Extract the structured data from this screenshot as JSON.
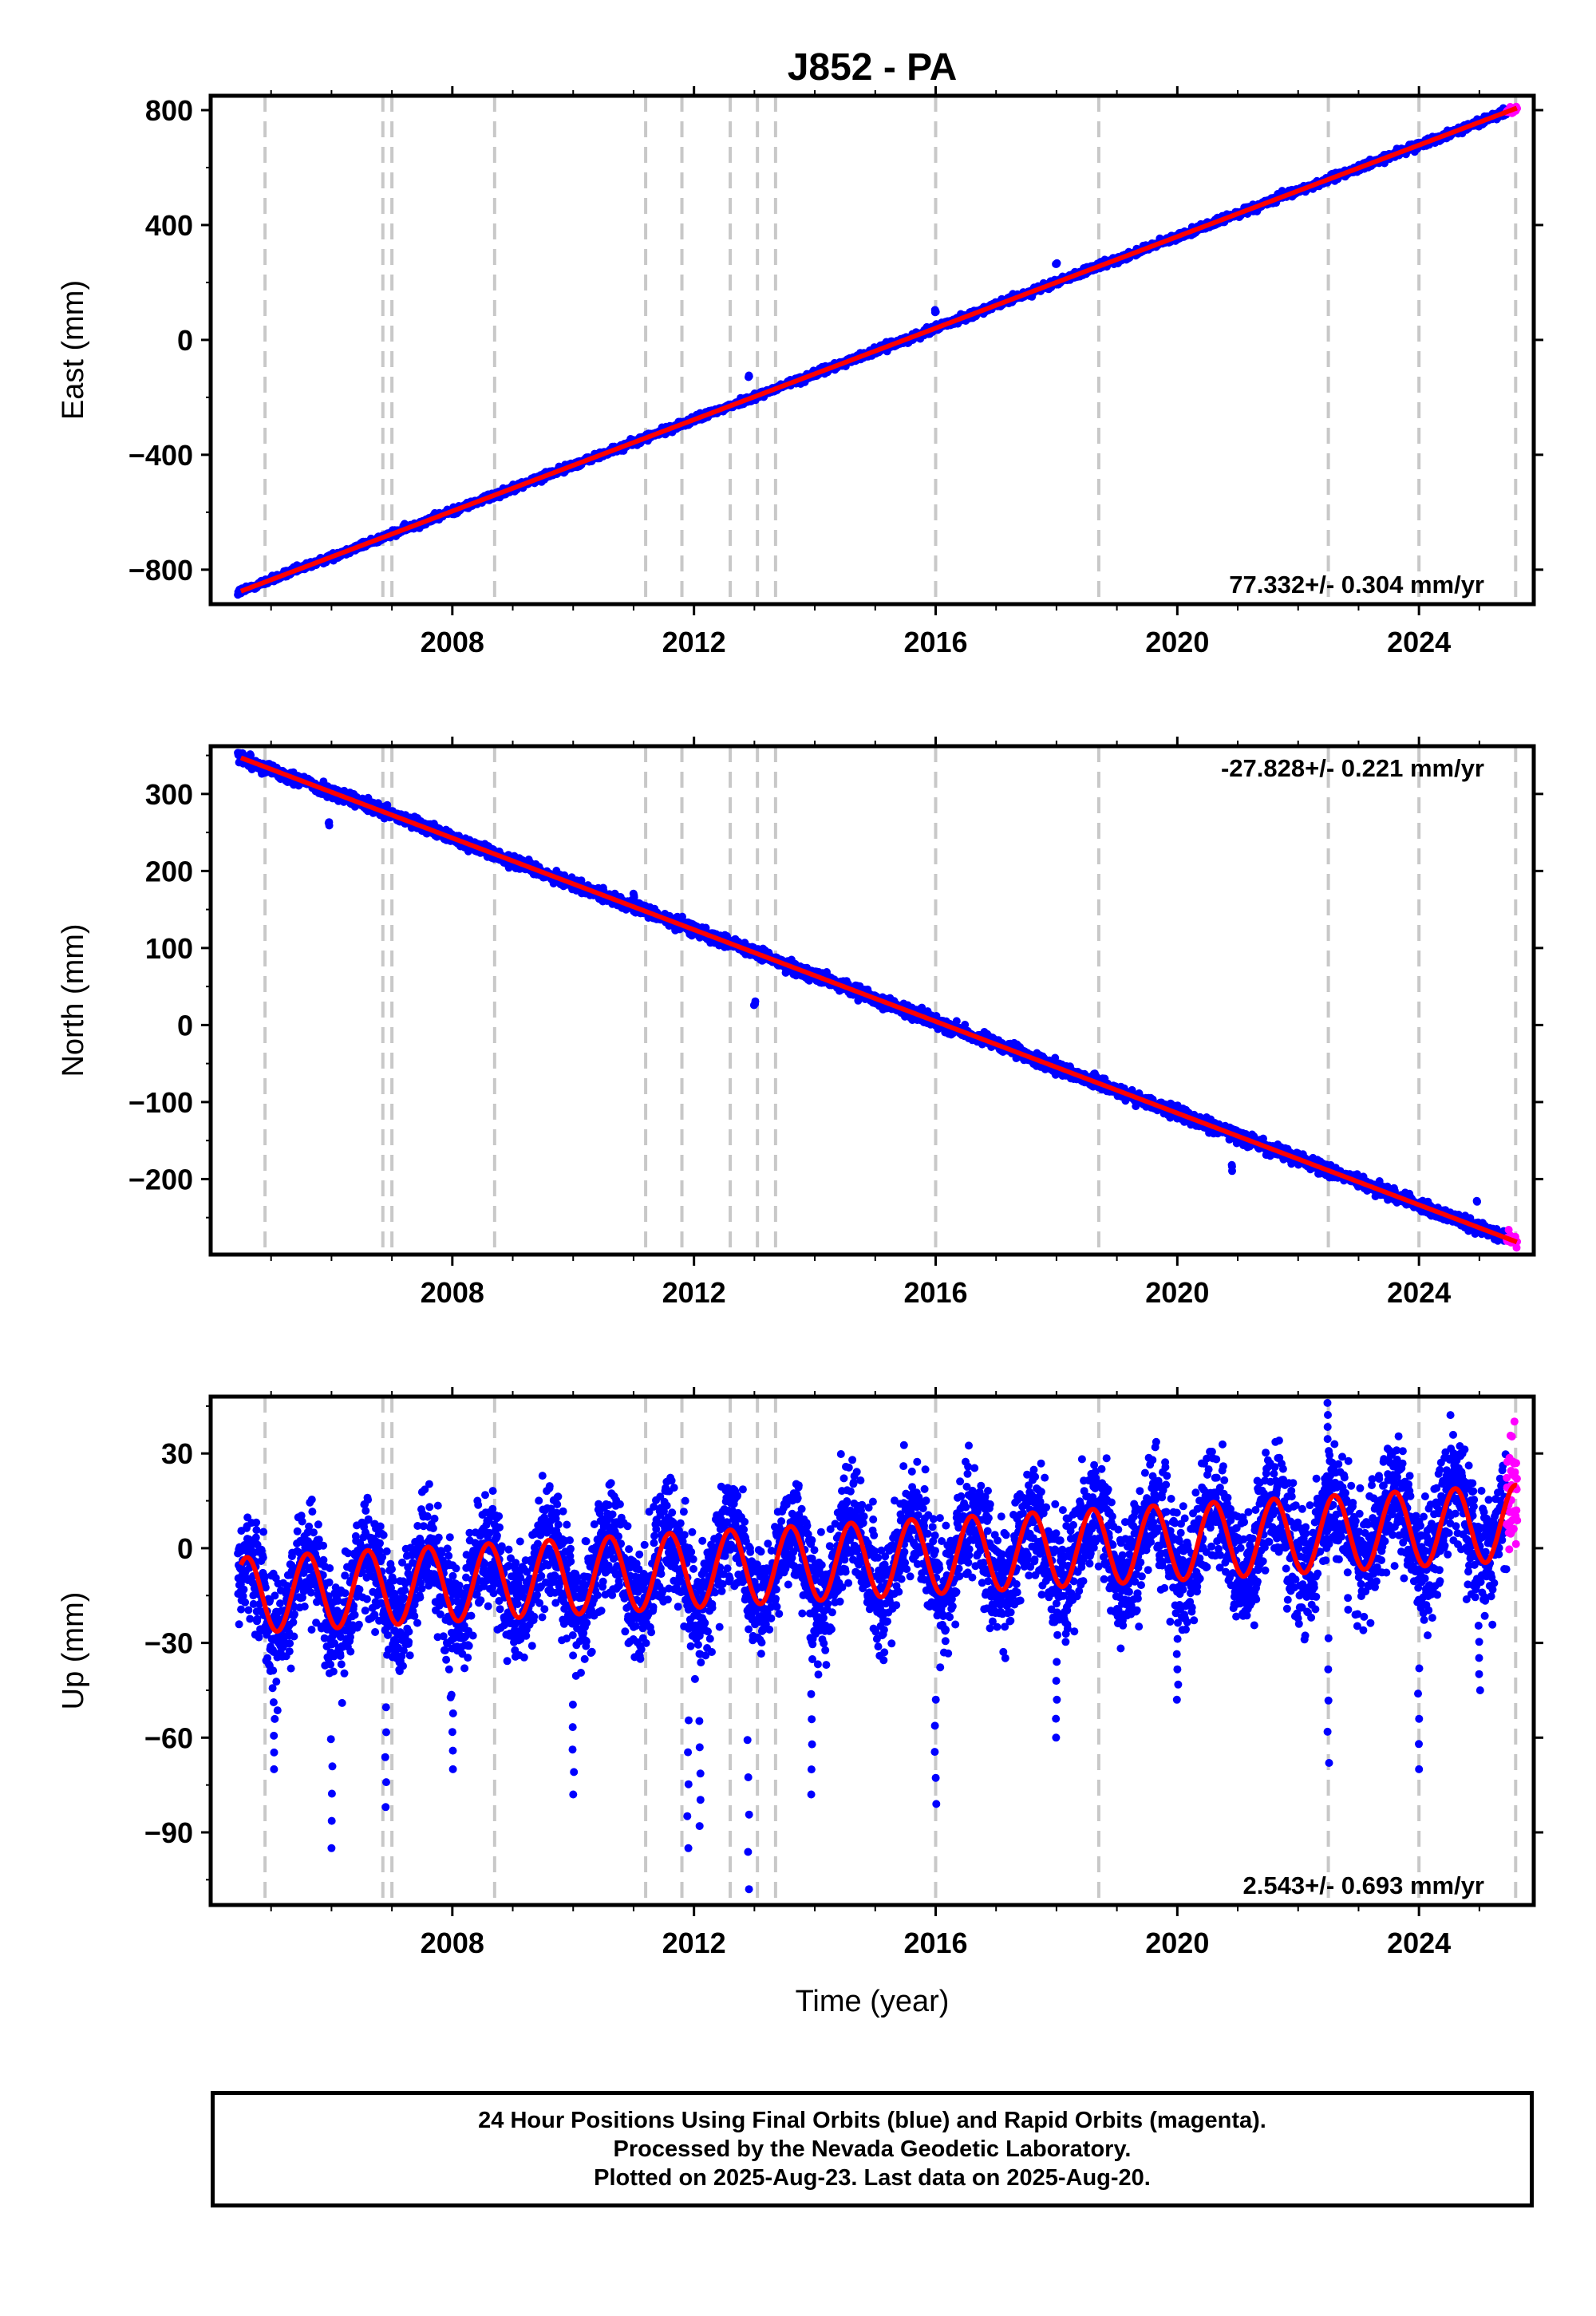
{
  "title": "J852 - PA",
  "xlabel": "Time (year)",
  "footer": {
    "line1": "24 Hour Positions Using Final Orbits (blue) and Rapid Orbits (magenta).",
    "line2": "Processed by the Nevada Geodetic Laboratory.",
    "line3": "Plotted on 2025-Aug-23. Last data on 2025-Aug-20."
  },
  "colors": {
    "final": "#0000ff",
    "rapid": "#ff00ff",
    "model": "#ff0000",
    "steps": "#c8c8c8"
  },
  "chart_data": [
    {
      "type": "scatter",
      "component": "East",
      "ylabel": "East (mm)",
      "xlim": [
        2004.0,
        2025.9
      ],
      "ylim": [
        -920,
        850
      ],
      "yticks": [
        -800,
        -400,
        0,
        400,
        800
      ],
      "xticks": [
        2008,
        2012,
        2016,
        2020,
        2024
      ],
      "rate": "77.332+/- 0.304 mm/yr",
      "rate_position": "bottom-right",
      "model": {
        "start_year": 2004.5,
        "start_value": -875,
        "end_year": 2025.63,
        "end_value": 808,
        "annual_amplitude": 0,
        "phase_year": 0
      },
      "series": [
        {
          "name": "Final Orbits",
          "color": "#0000ff",
          "x_range": [
            2004.45,
            2025.45
          ],
          "scatter": 6
        },
        {
          "name": "Rapid Orbits",
          "color": "#ff00ff",
          "x_range": [
            2025.45,
            2025.63
          ],
          "scatter": 6
        }
      ],
      "outliers": [
        [
          2012.9,
          -128
        ],
        [
          2016.0,
          100
        ],
        [
          2021.75,
          515
        ],
        [
          2018.0,
          265
        ]
      ]
    },
    {
      "type": "scatter",
      "component": "North",
      "ylabel": "North (mm)",
      "xlim": [
        2004.0,
        2025.9
      ],
      "ylim": [
        -298,
        362
      ],
      "yticks": [
        -200,
        -100,
        0,
        100,
        200,
        300
      ],
      "xticks": [
        2008,
        2012,
        2016,
        2020,
        2024
      ],
      "rate": "-27.828+/- 0.221 mm/yr",
      "rate_position": "top-right",
      "model": {
        "start_year": 2004.5,
        "start_value": 347,
        "end_year": 2025.63,
        "end_value": -282,
        "annual_amplitude": 0,
        "phase_year": 0
      },
      "series": [
        {
          "name": "Final Orbits",
          "color": "#0000ff",
          "x_range": [
            2004.45,
            2025.45
          ],
          "scatter": 4
        },
        {
          "name": "Rapid Orbits",
          "color": "#ff00ff",
          "x_range": [
            2025.45,
            2025.63
          ],
          "scatter": 4
        }
      ],
      "outliers": [
        [
          2005.95,
          262
        ],
        [
          2011.0,
          170
        ],
        [
          2013.0,
          30
        ],
        [
          2020.9,
          -185
        ],
        [
          2024.95,
          -230
        ],
        [
          2016.0,
          0
        ],
        [
          2018.0,
          -60
        ]
      ]
    },
    {
      "type": "scatter",
      "component": "Up",
      "ylabel": "Up (mm)",
      "xlim": [
        2004.0,
        2025.9
      ],
      "ylim": [
        -113,
        48
      ],
      "yticks": [
        -90,
        -60,
        -30,
        0,
        30
      ],
      "xticks": [
        2008,
        2012,
        2016,
        2020,
        2024
      ],
      "rate": "2.543+/- 0.693 mm/yr",
      "rate_position": "bottom-right",
      "model": {
        "start_year": 2004.5,
        "start_value": -15,
        "end_year": 2025.63,
        "end_value": 8,
        "annual_amplitude": 12,
        "phase_year": 0.35
      },
      "series": [
        {
          "name": "Final Orbits",
          "color": "#0000ff",
          "x_range": [
            2004.45,
            2025.45
          ],
          "scatter": 9
        },
        {
          "name": "Rapid Orbits",
          "color": "#ff00ff",
          "x_range": [
            2025.45,
            2025.63
          ],
          "scatter": 9
        }
      ],
      "outliers": [
        [
          2005.05,
          -70
        ],
        [
          2006.0,
          -95
        ],
        [
          2006.9,
          -82
        ],
        [
          2008.0,
          -70
        ],
        [
          2010.0,
          -78
        ],
        [
          2011.9,
          -95
        ],
        [
          2012.9,
          -108
        ],
        [
          2012.1,
          -88
        ],
        [
          2013.95,
          -78
        ],
        [
          2016.0,
          -81
        ],
        [
          2018.0,
          -60
        ],
        [
          2020.0,
          -48
        ],
        [
          2022.5,
          -68
        ],
        [
          2024.0,
          -70
        ],
        [
          2025.0,
          -45
        ],
        [
          2022.5,
          46
        ]
      ]
    }
  ],
  "steps": [
    2004.9,
    2006.85,
    2007.0,
    2008.7,
    2011.2,
    2011.8,
    2012.6,
    2013.05,
    2013.35,
    2016.0,
    2018.7,
    2022.5,
    2024.0,
    2025.6
  ]
}
